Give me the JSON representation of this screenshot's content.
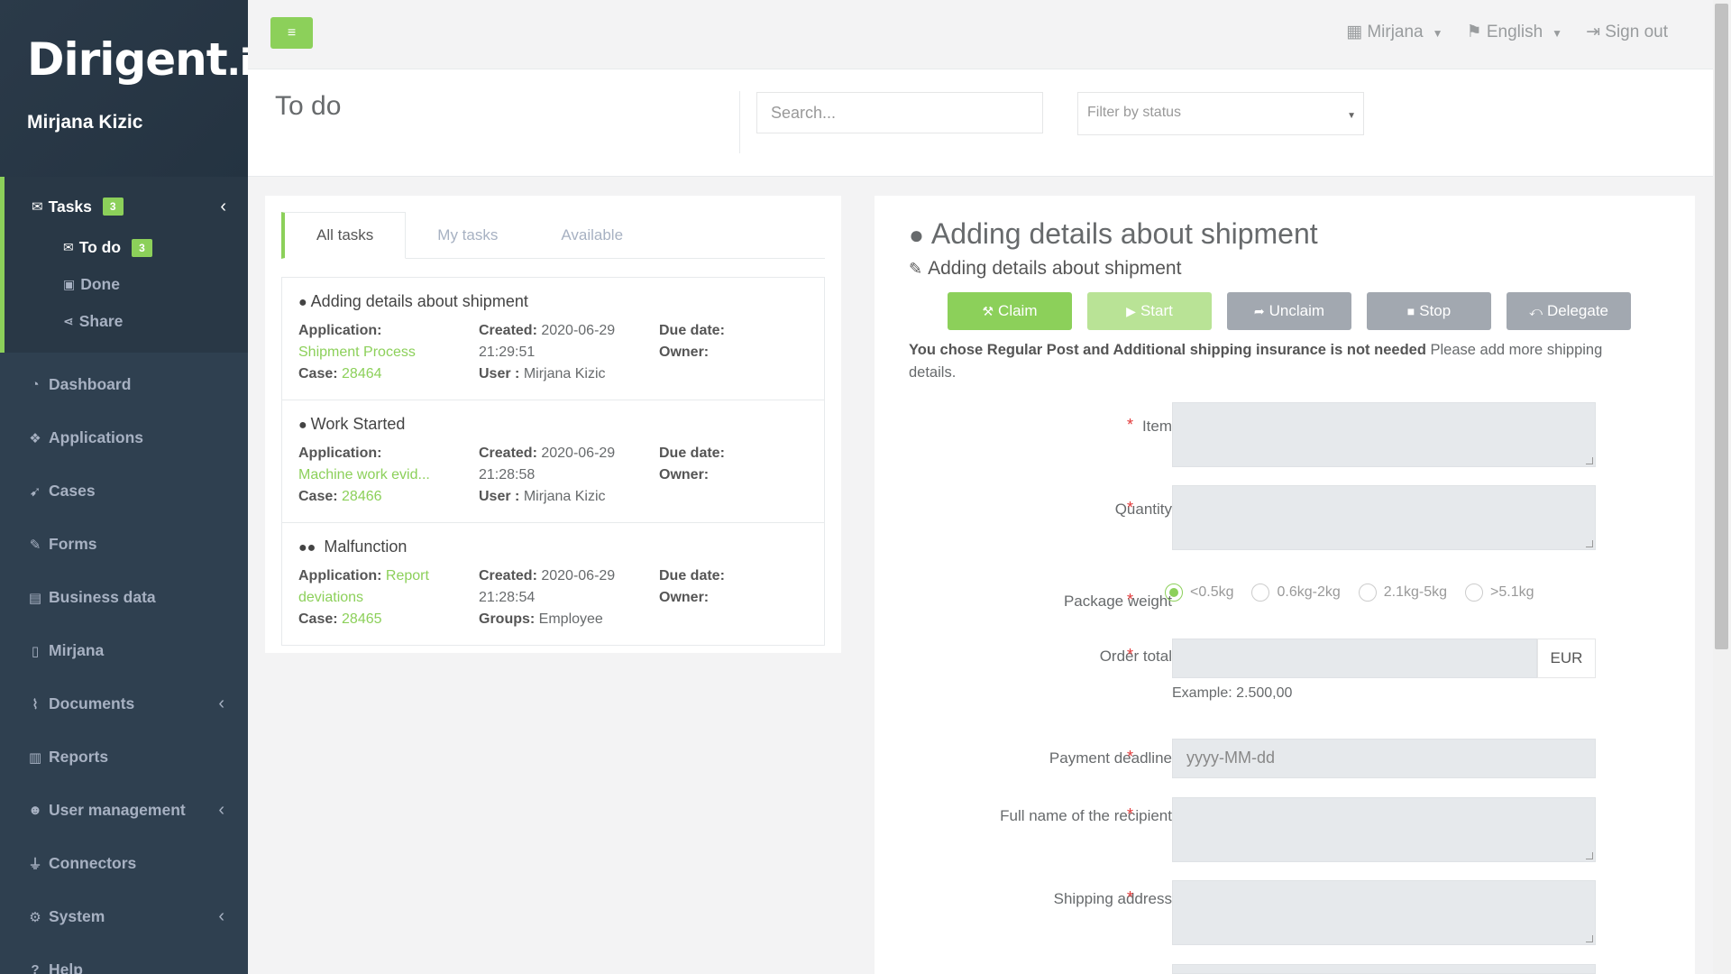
{
  "app": {
    "logo": "Dirigent",
    "logo_suffix": ".io",
    "user_name": "Mirjana Kizic"
  },
  "sidebar": {
    "tasks": {
      "label": "Tasks",
      "badge": "3"
    },
    "subitems": [
      {
        "label": "To do",
        "badge": "3"
      },
      {
        "label": "Done"
      },
      {
        "label": "Share"
      }
    ],
    "items": [
      {
        "label": "Dashboard"
      },
      {
        "label": "Applications"
      },
      {
        "label": "Cases"
      },
      {
        "label": "Forms"
      },
      {
        "label": "Business data"
      },
      {
        "label": "Mirjana"
      },
      {
        "label": "Documents"
      },
      {
        "label": "Reports"
      },
      {
        "label": "User management"
      },
      {
        "label": "Connectors"
      },
      {
        "label": "System"
      },
      {
        "label": "Help"
      }
    ]
  },
  "topbar": {
    "user_menu": "Mirjana",
    "language": "English",
    "signout": "Sign out"
  },
  "page": {
    "title": "To do",
    "search_placeholder": "Search...",
    "filter_placeholder": "Filter by status"
  },
  "tabs": [
    "All tasks",
    "My tasks",
    "Available"
  ],
  "tasks": [
    {
      "title": "Adding details about shipment",
      "application_label": "Application:",
      "application": "Shipment Process",
      "case_label": "Case:",
      "case": "28464",
      "created_label": "Created:",
      "created_date": "2020-06-29",
      "created_time": "21:29:51",
      "user_label": "User :",
      "user": "Mirjana Kizic",
      "due_label": "Due date:",
      "owner_label": "Owner:"
    },
    {
      "title": "Work Started",
      "application_label": "Application:",
      "application": "Machine work evid...",
      "case_label": "Case:",
      "case": "28466",
      "created_label": "Created:",
      "created_date": "2020-06-29",
      "created_time": "21:28:58",
      "user_label": "User :",
      "user": "Mirjana Kizic",
      "due_label": "Due date:",
      "owner_label": "Owner:"
    },
    {
      "title": "Malfunction",
      "application_label": "Application:",
      "application": "Report deviations",
      "case_label": "Case:",
      "case": "28465",
      "created_label": "Created:",
      "created_date": "2020-06-29",
      "created_time": "21:28:54",
      "user_label": "Groups:",
      "user": "Employee",
      "due_label": "Due date:",
      "owner_label": "Owner:"
    }
  ],
  "detail": {
    "title": "Adding details about shipment",
    "subtitle": "Adding details about shipment",
    "buttons": [
      "Claim",
      "Start",
      "Unclaim",
      "Stop",
      "Delegate"
    ],
    "notice_bold": "You chose Regular Post and Additional shipping insurance is not needed",
    "notice_rest": " Please add more shipping details.",
    "fields": {
      "item": "Item",
      "quantity": "Quantity",
      "weight": "Package weight",
      "weight_options": [
        "<0.5kg",
        "0.6kg-2kg",
        "2.1kg-5kg",
        ">5.1kg"
      ],
      "order_total": "Order total",
      "currency": "EUR",
      "example": "Example: 2.500,00",
      "deadline": "Payment deadline",
      "deadline_placeholder": "yyyy-MM-dd",
      "recipient": "Full name of the recipient",
      "address": "Shipping address",
      "required_mark": "*"
    }
  },
  "colors": {
    "accent": "#8cd05a",
    "sidebar": "#2f4050",
    "required": "#e23838"
  }
}
